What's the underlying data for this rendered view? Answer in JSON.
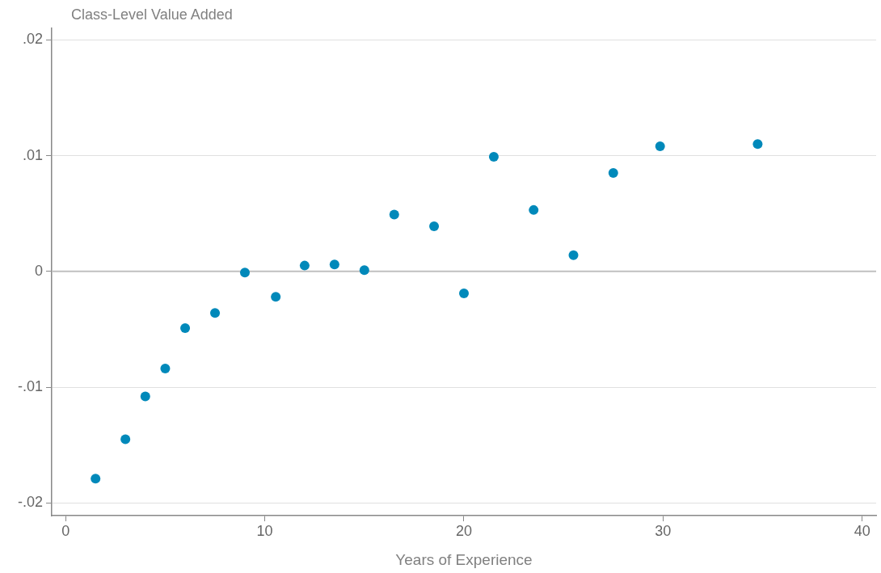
{
  "chart_data": {
    "type": "scatter",
    "ylabel": "Class-Level Value Added",
    "xlabel": "Years of Experience",
    "series": [
      {
        "color": "#0089ba",
        "x": [
          1.5,
          3.0,
          4.0,
          5.0,
          6.0,
          7.5,
          9.0,
          10.55,
          12.0,
          13.5,
          15.0,
          16.5,
          18.5,
          20.0,
          21.5,
          23.5,
          25.5,
          27.5,
          29.85,
          34.75
        ],
        "values": [
          -0.0179,
          -0.0145,
          -0.0108,
          -0.0084,
          -0.0049,
          -0.0036,
          -0.0001,
          -0.0022,
          0.0005,
          0.0006,
          0.0001,
          0.0049,
          0.0039,
          -0.0019,
          0.0099,
          0.0053,
          0.0014,
          0.0085,
          0.0108,
          0.011
        ]
      }
    ],
    "xlim": [
      -0.7,
      40.7
    ],
    "xticks": [
      0,
      10,
      20,
      30,
      40
    ],
    "ylim": [
      -0.0211,
      0.021
    ],
    "yticks": [
      {
        "value": -0.02,
        "label": "-.02"
      },
      {
        "value": -0.01,
        "label": "-.01"
      },
      0,
      {
        "value": 0.01,
        "label": ".01"
      },
      {
        "value": 0.02,
        "label": ".02"
      }
    ],
    "grid": "y",
    "marker": "circle",
    "legend": false,
    "ref_lines": [
      {
        "axis": "y",
        "value": 0,
        "color": "#c0c0c0"
      }
    ]
  }
}
